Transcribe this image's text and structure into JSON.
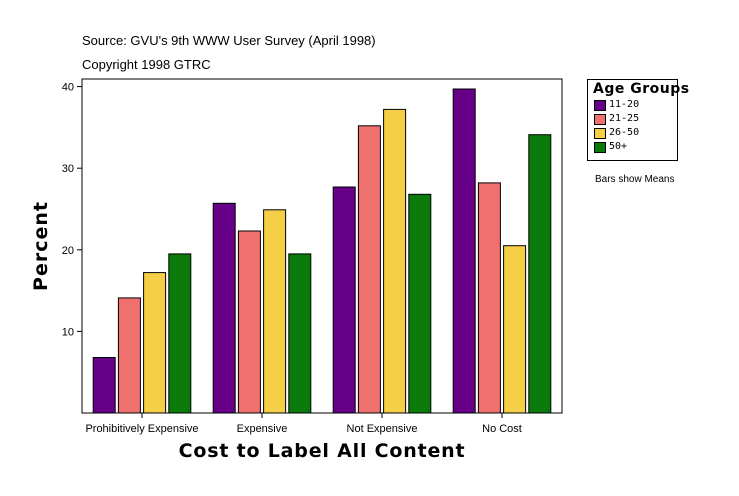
{
  "source_line": "Source: GVU's 9th WWW User Survey (April 1998)",
  "copyright_line": "Copyright 1998 GTRC",
  "note": "Bars show Means",
  "chart_data": {
    "type": "bar",
    "title": "",
    "xlabel": "Cost to Label All Content",
    "ylabel": "Percent",
    "categories": [
      "Prohibitively Expensive",
      "Expensive",
      "Not Expensive",
      "No Cost"
    ],
    "yticks": [
      10,
      20,
      30,
      40
    ],
    "ylim": [
      0,
      41
    ],
    "legend_title": "Age Groups",
    "series": [
      {
        "name": "11-20",
        "color": "#660088",
        "values": [
          6.8,
          25.7,
          27.7,
          39.7
        ]
      },
      {
        "name": "21-25",
        "color": "#f07070",
        "values": [
          14.1,
          22.3,
          35.2,
          28.2
        ]
      },
      {
        "name": "26-50",
        "color": "#f5cf45",
        "values": [
          17.2,
          24.9,
          37.2,
          20.5
        ]
      },
      {
        "name": "50+",
        "color": "#0a7a0a",
        "values": [
          19.5,
          19.5,
          26.8,
          34.1
        ]
      }
    ]
  }
}
